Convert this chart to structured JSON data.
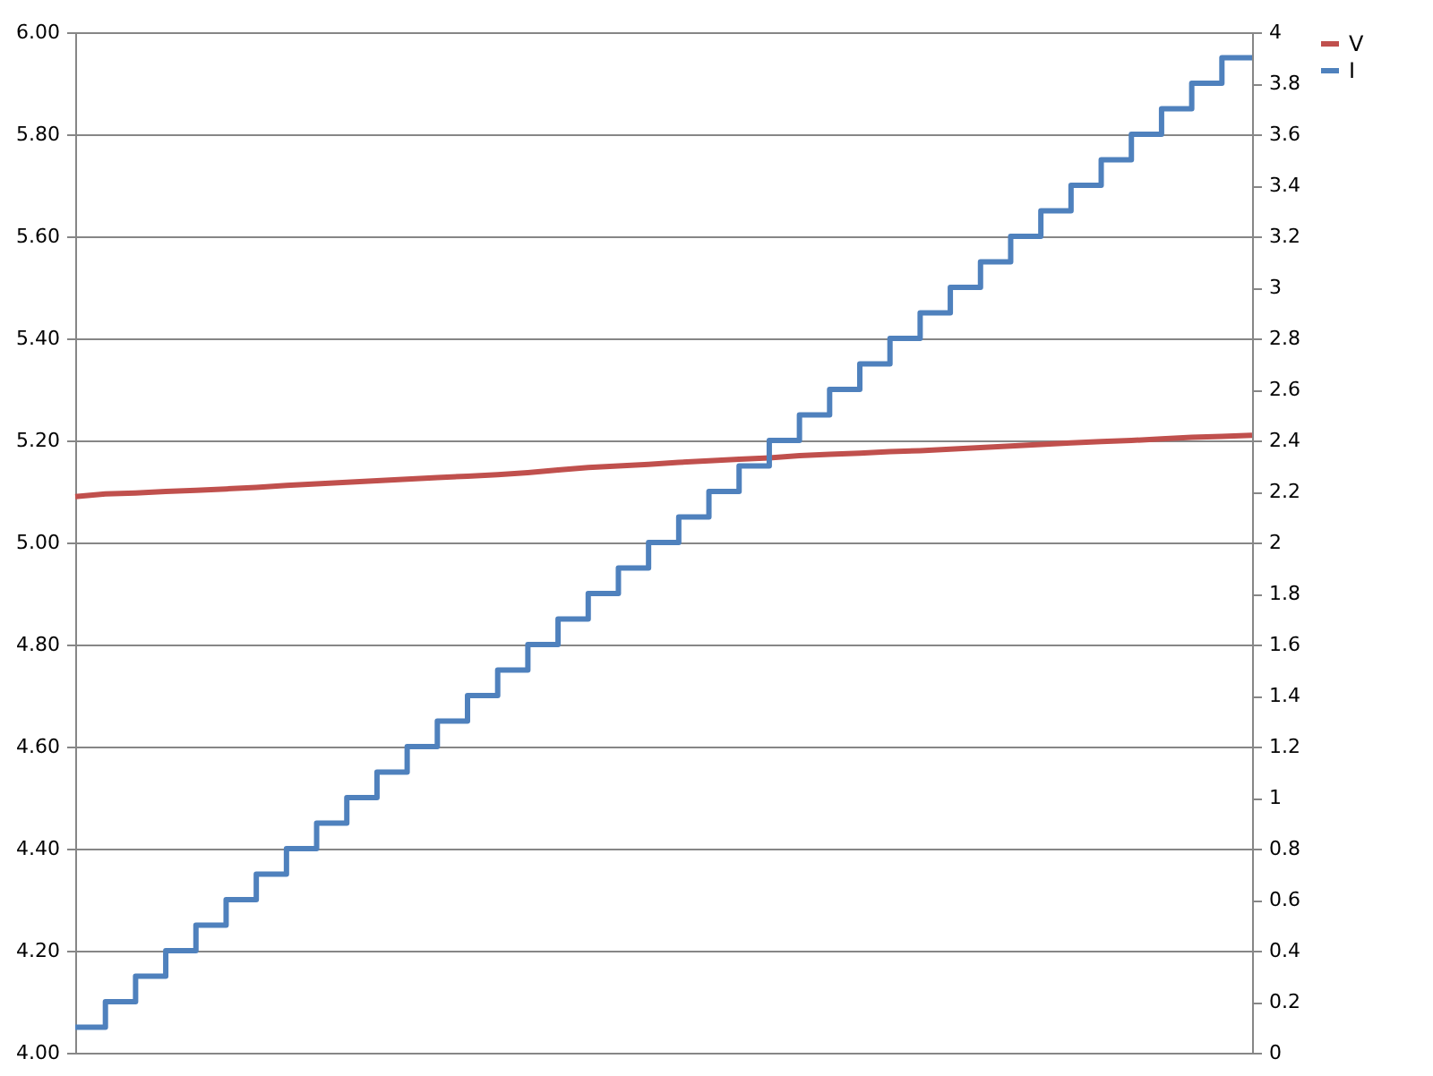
{
  "chart_data": {
    "type": "line",
    "categories": [
      null,
      null,
      null,
      null,
      null,
      null,
      null,
      null,
      null,
      null,
      null,
      null,
      null,
      null,
      null,
      null,
      null,
      null,
      null,
      null,
      null,
      null,
      null,
      null,
      null,
      null,
      null,
      null,
      null,
      null,
      null,
      null,
      null,
      null,
      null,
      null,
      null,
      null,
      null,
      null
    ],
    "series": [
      {
        "name": "V",
        "color": "#c0504d",
        "type": "line",
        "values": [
          5.09,
          5.095,
          5.097,
          5.1,
          5.102,
          5.105,
          5.108,
          5.112,
          5.115,
          5.118,
          5.121,
          5.124,
          5.127,
          5.13,
          5.133,
          5.137,
          5.142,
          5.147,
          5.15,
          5.153,
          5.157,
          5.16,
          5.163,
          5.166,
          5.17,
          5.173,
          5.175,
          5.178,
          5.18,
          5.183,
          5.186,
          5.189,
          5.192,
          5.195,
          5.198,
          5.2,
          5.203,
          5.206,
          5.208,
          5.21
        ]
      },
      {
        "name": "I",
        "color": "#4f81bd",
        "type": "step",
        "axis": "y2",
        "values": [
          0.1,
          0.2,
          0.3,
          0.4,
          0.5,
          0.6,
          0.7,
          0.8,
          0.9,
          1.0,
          1.1,
          1.2,
          1.3,
          1.4,
          1.5,
          1.6,
          1.7,
          1.8,
          1.9,
          2.0,
          2.1,
          2.2,
          2.3,
          2.4,
          2.5,
          2.6,
          2.7,
          2.8,
          2.9,
          3.0,
          3.1,
          3.2,
          3.3,
          3.4,
          3.5,
          3.6,
          3.7,
          3.8,
          3.9,
          3.9
        ]
      }
    ],
    "ylim": [
      4,
      6
    ],
    "yticks": [
      {
        "value": 4,
        "label": "4.00"
      },
      {
        "value": 4.2,
        "label": "4.20"
      },
      {
        "value": 4.4,
        "label": "4.40"
      },
      {
        "value": 4.6,
        "label": "4.60"
      },
      {
        "value": 4.8,
        "label": "4.80"
      },
      {
        "value": 5,
        "label": "5.00"
      },
      {
        "value": 5.2,
        "label": "5.20"
      },
      {
        "value": 5.4,
        "label": "5.40"
      },
      {
        "value": 5.6,
        "label": "5.60"
      },
      {
        "value": 5.8,
        "label": "5.80"
      },
      {
        "value": 6,
        "label": "6.00"
      }
    ],
    "y2lim": [
      0,
      4
    ],
    "y2ticks": [
      0,
      0.2,
      0.4,
      0.6,
      0.8,
      1,
      1.2,
      1.4,
      1.6,
      1.8,
      2,
      2.2,
      2.4,
      2.6,
      2.8,
      3,
      3.2,
      3.4,
      3.6,
      3.8,
      4
    ],
    "grid": "y",
    "legend": "right",
    "tick_labels": "y"
  }
}
